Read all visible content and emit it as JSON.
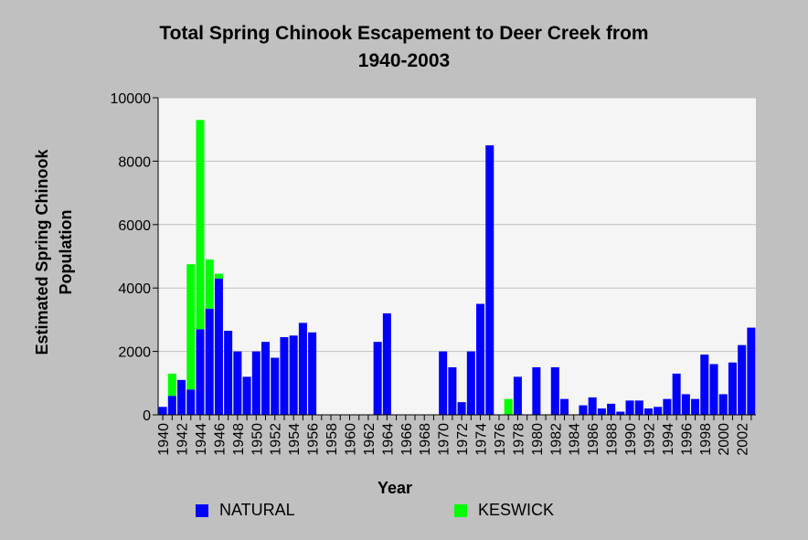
{
  "chart_data": {
    "type": "bar",
    "stacked": true,
    "title_line1": "Total Spring Chinook Escapement to Deer Creek from",
    "title_line2": "1940-2003",
    "xlabel": "Year",
    "ylabel_line1": "Estimated Spring Chinook",
    "ylabel_line2": "Population",
    "ylim": [
      0,
      10000
    ],
    "yticks": [
      0,
      2000,
      4000,
      6000,
      8000,
      10000
    ],
    "grid": true,
    "legend_position": "bottom",
    "x": [
      1940,
      1941,
      1942,
      1943,
      1944,
      1945,
      1946,
      1947,
      1948,
      1949,
      1950,
      1951,
      1952,
      1953,
      1954,
      1955,
      1956,
      1957,
      1958,
      1959,
      1960,
      1961,
      1962,
      1963,
      1964,
      1965,
      1966,
      1967,
      1968,
      1969,
      1970,
      1971,
      1972,
      1973,
      1974,
      1975,
      1976,
      1977,
      1978,
      1979,
      1980,
      1981,
      1982,
      1983,
      1984,
      1985,
      1986,
      1987,
      1988,
      1989,
      1990,
      1991,
      1992,
      1993,
      1994,
      1995,
      1996,
      1997,
      1998,
      1999,
      2000,
      2001,
      2002,
      2003
    ],
    "xtick_labels": [
      "1940",
      "1942",
      "1944",
      "1946",
      "1948",
      "1950",
      "1952",
      "1954",
      "1956",
      "1958",
      "1960",
      "1962",
      "1964",
      "1966",
      "1968",
      "1970",
      "1972",
      "1974",
      "1976",
      "1978",
      "1980",
      "1982",
      "1984",
      "1986",
      "1988",
      "1990",
      "1992",
      "1994",
      "1996",
      "1998",
      "2000",
      "2002"
    ],
    "series": [
      {
        "name": "NATURAL",
        "color": "#0000ff",
        "values": [
          250,
          600,
          1100,
          800,
          2700,
          3350,
          4300,
          2650,
          2000,
          1200,
          2000,
          2300,
          1800,
          2450,
          2500,
          2900,
          2600,
          0,
          0,
          0,
          0,
          0,
          0,
          2300,
          3200,
          0,
          0,
          0,
          0,
          0,
          2000,
          1500,
          400,
          2000,
          3500,
          8500,
          0,
          0,
          1200,
          0,
          1500,
          0,
          1500,
          500,
          0,
          300,
          550,
          200,
          350,
          100,
          450,
          450,
          200,
          250,
          500,
          1300,
          650,
          500,
          1900,
          1600,
          650,
          1650,
          2200,
          2750
        ]
      },
      {
        "name": "KESWICK",
        "color": "#00ff00",
        "values": [
          0,
          700,
          0,
          3950,
          6600,
          1550,
          150,
          0,
          0,
          0,
          0,
          0,
          0,
          0,
          0,
          0,
          0,
          0,
          0,
          0,
          0,
          0,
          0,
          0,
          0,
          0,
          0,
          0,
          0,
          0,
          0,
          0,
          0,
          0,
          0,
          0,
          0,
          500,
          0,
          0,
          0,
          0,
          0,
          0,
          0,
          0,
          0,
          0,
          0,
          0,
          0,
          0,
          0,
          0,
          0,
          0,
          0,
          0,
          0,
          0,
          0,
          0,
          0,
          0
        ]
      }
    ]
  }
}
